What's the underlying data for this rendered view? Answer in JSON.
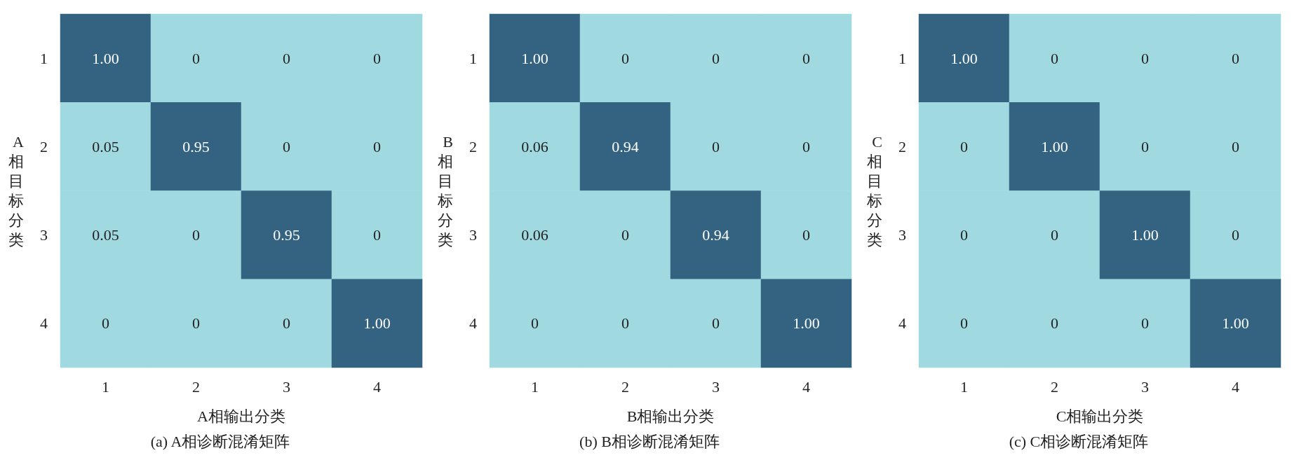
{
  "chart_data": [
    {
      "type": "heatmap",
      "title": "(a) A相诊断混淆矩阵",
      "xlabel": "A相输出分类",
      "ylabel": "A相目标分类",
      "categories": [
        "1",
        "2",
        "3",
        "4"
      ],
      "y_categories": [
        "1",
        "2",
        "3",
        "4"
      ],
      "cells": [
        [
          1,
          0,
          0,
          0
        ],
        [
          0.05,
          0.95,
          0,
          0
        ],
        [
          0.05,
          0,
          0.95,
          0
        ],
        [
          0,
          0,
          0,
          1
        ]
      ],
      "cell_labels": [
        [
          "1.00",
          "0",
          "0",
          "0"
        ],
        [
          "0.05",
          "0.95",
          "0",
          "0"
        ],
        [
          "0.05",
          "0",
          "0.95",
          "0"
        ],
        [
          "0",
          "0",
          "0",
          "1.00"
        ]
      ]
    },
    {
      "type": "heatmap",
      "title": "(b) B相诊断混淆矩阵",
      "xlabel": "B相输出分类",
      "ylabel": "B相目标分类",
      "categories": [
        "1",
        "2",
        "3",
        "4"
      ],
      "y_categories": [
        "1",
        "2",
        "3",
        "4"
      ],
      "cells": [
        [
          1,
          0,
          0,
          0
        ],
        [
          0.06,
          0.94,
          0,
          0
        ],
        [
          0.06,
          0,
          0.94,
          0
        ],
        [
          0,
          0,
          0,
          1
        ]
      ],
      "cell_labels": [
        [
          "1.00",
          "0",
          "0",
          "0"
        ],
        [
          "0.06",
          "0.94",
          "0",
          "0"
        ],
        [
          "0.06",
          "0",
          "0.94",
          "0"
        ],
        [
          "0",
          "0",
          "0",
          "1.00"
        ]
      ]
    },
    {
      "type": "heatmap",
      "title": "(c) C相诊断混淆矩阵",
      "xlabel": "C相输出分类",
      "ylabel": "C相目标分类",
      "categories": [
        "1",
        "2",
        "3",
        "4"
      ],
      "y_categories": [
        "1",
        "2",
        "3",
        "4"
      ],
      "cells": [
        [
          1,
          0,
          0,
          0
        ],
        [
          0,
          1,
          0,
          0
        ],
        [
          0,
          0,
          1,
          0
        ],
        [
          0,
          0,
          0,
          1
        ]
      ],
      "cell_labels": [
        [
          "1.00",
          "0",
          "0",
          "0"
        ],
        [
          "0",
          "1.00",
          "0",
          "0"
        ],
        [
          "0",
          "0",
          "1.00",
          "0"
        ],
        [
          "0",
          "0",
          "0",
          "1.00"
        ]
      ]
    }
  ]
}
